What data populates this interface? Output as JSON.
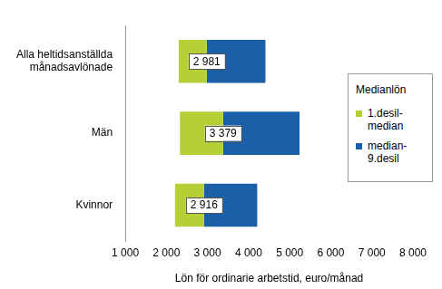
{
  "chart_data": {
    "type": "bar",
    "orientation": "horizontal",
    "categories": [
      [
        "Alla heltidsanställda",
        "månadsavlönade"
      ],
      "Män",
      "Kvinnor"
    ],
    "series": [
      {
        "name": [
          "1.desil-",
          "median"
        ],
        "color": "#b7cf36",
        "values": [
          [
            2300,
            2981
          ],
          [
            2330,
            3379
          ],
          [
            2210,
            2916
          ]
        ]
      },
      {
        "name": [
          "median-",
          "9.desil"
        ],
        "color": "#1a5fa8",
        "values": [
          [
            2981,
            4410
          ],
          [
            3379,
            5240
          ],
          [
            2916,
            4210
          ]
        ]
      }
    ],
    "medians": {
      "values": [
        2981,
        3379,
        2916
      ],
      "value_labels": [
        "2 981",
        "3 379",
        "2 916"
      ]
    },
    "legend_title": "Medianlön",
    "legend": "right",
    "xlabel": "Lön för ordinarie arbetstid, euro/månad",
    "xlim": [
      1000,
      8000
    ],
    "xticks": [
      {
        "value": 1000,
        "label": "1 000"
      },
      {
        "value": 2000,
        "label": "2 000"
      },
      {
        "value": 3000,
        "label": "3 000"
      },
      {
        "value": 4000,
        "label": "4 000"
      },
      {
        "value": 5000,
        "label": "5 000"
      },
      {
        "value": 6000,
        "label": "6 000"
      },
      {
        "value": 7000,
        "label": "7 000"
      },
      {
        "value": 8000,
        "label": "8 000"
      }
    ],
    "grid": false,
    "data_labels": true
  }
}
